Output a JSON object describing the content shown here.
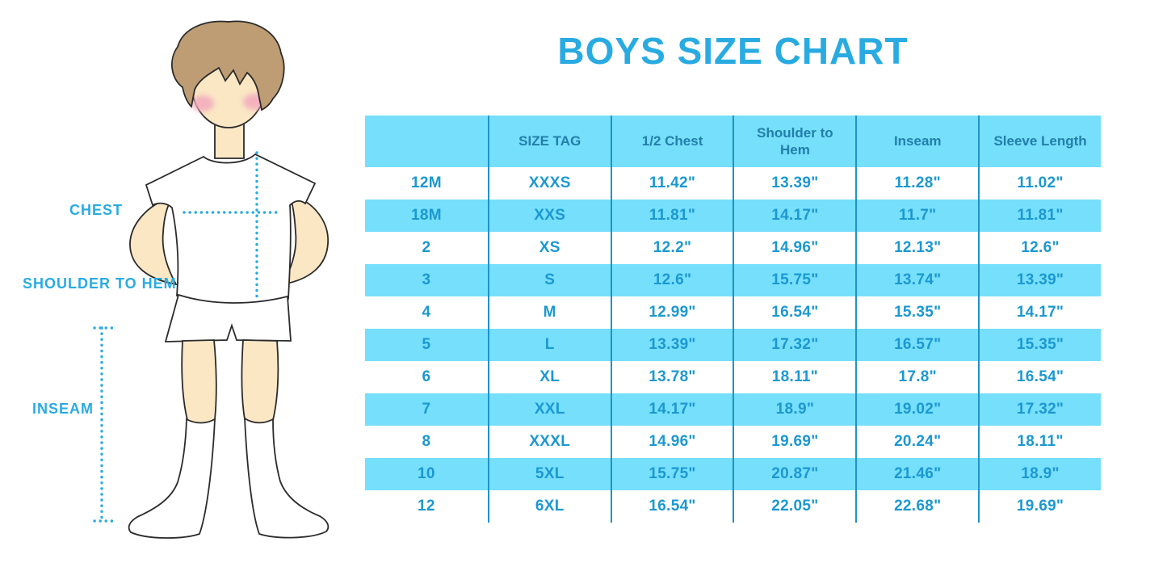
{
  "title": "BOYS SIZE CHART",
  "figure": {
    "labels": {
      "chest": "CHEST",
      "shoulder_to_hem": "SHOULDER TO HEM",
      "inseam": "INSEAM"
    }
  },
  "colors": {
    "title_blue": "#29ABE2",
    "label_blue": "#29ABE2",
    "dotted_line": "#29ABE2",
    "band_cyan": "#76DFFC",
    "column_divider": "#1E93C8",
    "header_text": "#217FAA",
    "cell_text": "#1B98D2",
    "skin": "#FBE7C4",
    "hair": "#BE9D74",
    "cheek": "#F2A9BE"
  },
  "chart_data": {
    "type": "table",
    "title": "BOYS SIZE CHART",
    "columns": [
      "",
      "SIZE TAG",
      "1/2 Chest",
      "Shoulder to Hem",
      "Inseam",
      "Sleeve Length"
    ],
    "rows": [
      [
        "12M",
        "XXXS",
        "11.42\"",
        "13.39\"",
        "11.28\"",
        "11.02\""
      ],
      [
        "18M",
        "XXS",
        "11.81\"",
        "14.17\"",
        "11.7\"",
        "11.81\""
      ],
      [
        "2",
        "XS",
        "12.2\"",
        "14.96\"",
        "12.13\"",
        "12.6\""
      ],
      [
        "3",
        "S",
        "12.6\"",
        "15.75\"",
        "13.74\"",
        "13.39\""
      ],
      [
        "4",
        "M",
        "12.99\"",
        "16.54\"",
        "15.35\"",
        "14.17\""
      ],
      [
        "5",
        "L",
        "13.39\"",
        "17.32\"",
        "16.57\"",
        "15.35\""
      ],
      [
        "6",
        "XL",
        "13.78\"",
        "18.11\"",
        "17.8\"",
        "16.54\""
      ],
      [
        "7",
        "XXL",
        "14.17\"",
        "18.9\"",
        "19.02\"",
        "17.32\""
      ],
      [
        "8",
        "XXXL",
        "14.96\"",
        "19.69\"",
        "20.24\"",
        "18.11\""
      ],
      [
        "10",
        "5XL",
        "15.75\"",
        "20.87\"",
        "21.46\"",
        "18.9\""
      ],
      [
        "12",
        "6XL",
        "16.54\"",
        "22.05\"",
        "22.68\"",
        "19.69\""
      ]
    ]
  }
}
